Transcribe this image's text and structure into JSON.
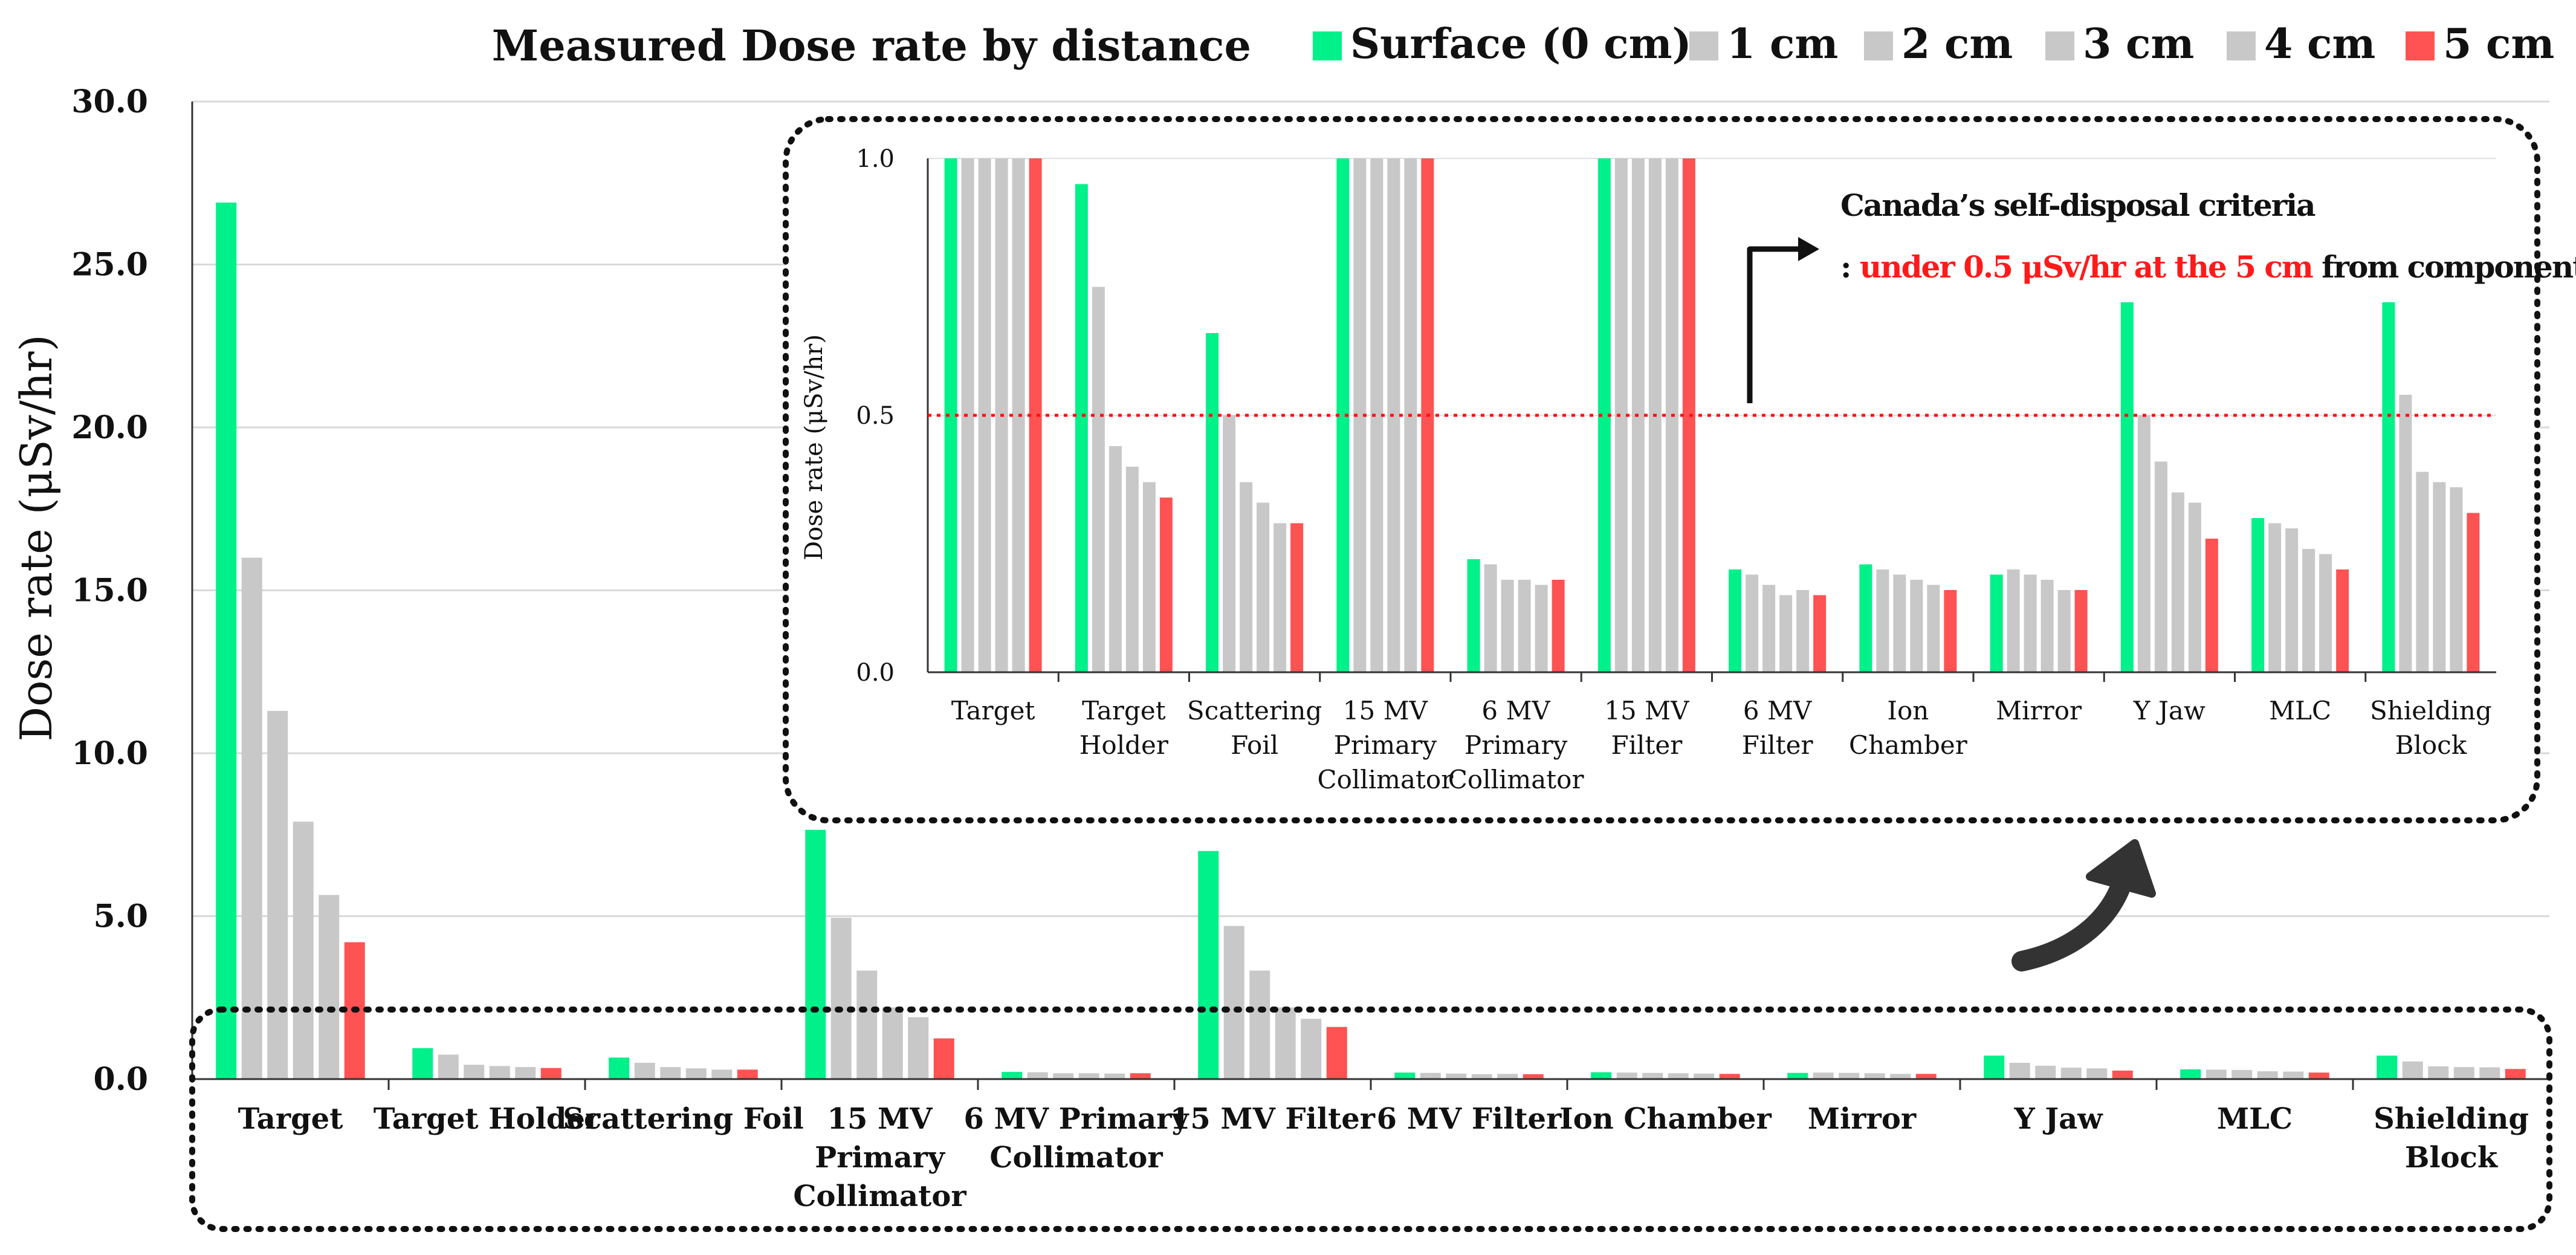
{
  "chart_data": {
    "type": "bar",
    "title": "Measured Dose rate by distance",
    "ylabel": "Dose rate (μSv/hr)",
    "xlabel": "",
    "ylim": [
      0,
      30
    ],
    "yticks": [
      "0.0",
      "5.0",
      "10.0",
      "15.0",
      "20.0",
      "25.0",
      "30.0"
    ],
    "grid": true,
    "legend_position": "top-right",
    "series_colors": [
      "#00f08a",
      "#c8c8c8",
      "#c8c8c8",
      "#c8c8c8",
      "#c8c8c8",
      "#ff5252"
    ],
    "series": [
      {
        "name": "Surface (0 cm)",
        "values": [
          26.9,
          0.95,
          0.66,
          7.65,
          0.22,
          7.0,
          0.2,
          0.21,
          0.19,
          0.72,
          0.3,
          0.72
        ]
      },
      {
        "name": "1 cm",
        "values": [
          16.0,
          0.75,
          0.5,
          4.95,
          0.21,
          4.7,
          0.19,
          0.2,
          0.2,
          0.5,
          0.29,
          0.54
        ]
      },
      {
        "name": "2 cm",
        "values": [
          11.3,
          0.44,
          0.37,
          3.33,
          0.18,
          3.33,
          0.17,
          0.19,
          0.19,
          0.41,
          0.28,
          0.39
        ]
      },
      {
        "name": "3 cm",
        "values": [
          7.9,
          0.4,
          0.33,
          2.2,
          0.18,
          2.2,
          0.15,
          0.18,
          0.18,
          0.35,
          0.24,
          0.37
        ]
      },
      {
        "name": "4 cm",
        "values": [
          5.65,
          0.37,
          0.29,
          1.9,
          0.17,
          1.85,
          0.16,
          0.17,
          0.16,
          0.33,
          0.23,
          0.36
        ]
      },
      {
        "name": "5 cm",
        "values": [
          4.2,
          0.34,
          0.29,
          1.25,
          0.18,
          1.6,
          0.15,
          0.16,
          0.16,
          0.26,
          0.2,
          0.31
        ]
      }
    ],
    "categories": [
      {
        "lines": [
          "Target"
        ]
      },
      {
        "lines": [
          "Target Holder"
        ]
      },
      {
        "lines": [
          "Scattering Foil"
        ]
      },
      {
        "lines": [
          "15 MV",
          "Primary",
          "Collimator"
        ]
      },
      {
        "lines": [
          "6 MV Primary",
          "Collimator"
        ]
      },
      {
        "lines": [
          "15 MV Filter"
        ]
      },
      {
        "lines": [
          "6 MV Filter"
        ]
      },
      {
        "lines": [
          "Ion Chamber"
        ]
      },
      {
        "lines": [
          "Mirror"
        ]
      },
      {
        "lines": [
          "Y Jaw"
        ]
      },
      {
        "lines": [
          "MLC"
        ]
      },
      {
        "lines": [
          "Shielding",
          "Block"
        ]
      }
    ],
    "inset": {
      "type": "bar",
      "ylabel": "Dose rate (μSv/hr)",
      "ylim": [
        0,
        1
      ],
      "yticks": [
        "0.0",
        "0.5",
        "1.0"
      ],
      "threshold": 0.5,
      "categories": [
        {
          "lines": [
            "Target"
          ]
        },
        {
          "lines": [
            "Target",
            "Holder"
          ]
        },
        {
          "lines": [
            "Scattering",
            "Foil"
          ]
        },
        {
          "lines": [
            "15 MV",
            "Primary",
            "Collimator"
          ]
        },
        {
          "lines": [
            "6 MV",
            "Primary",
            "Collimator"
          ]
        },
        {
          "lines": [
            "15 MV",
            "Filter"
          ]
        },
        {
          "lines": [
            "6 MV",
            "Filter"
          ]
        },
        {
          "lines": [
            "Ion",
            "Chamber"
          ]
        },
        {
          "lines": [
            "Mirror"
          ]
        },
        {
          "lines": [
            "Y Jaw"
          ]
        },
        {
          "lines": [
            "MLC"
          ]
        },
        {
          "lines": [
            "Shielding",
            "Block"
          ]
        }
      ],
      "annotation_title": "Canada’s self-disposal criteria",
      "annotation_prefix": ": ",
      "annotation_highlight": "under 0.5 μSv/hr at the 5 cm",
      "annotation_suffix": " from component"
    }
  }
}
